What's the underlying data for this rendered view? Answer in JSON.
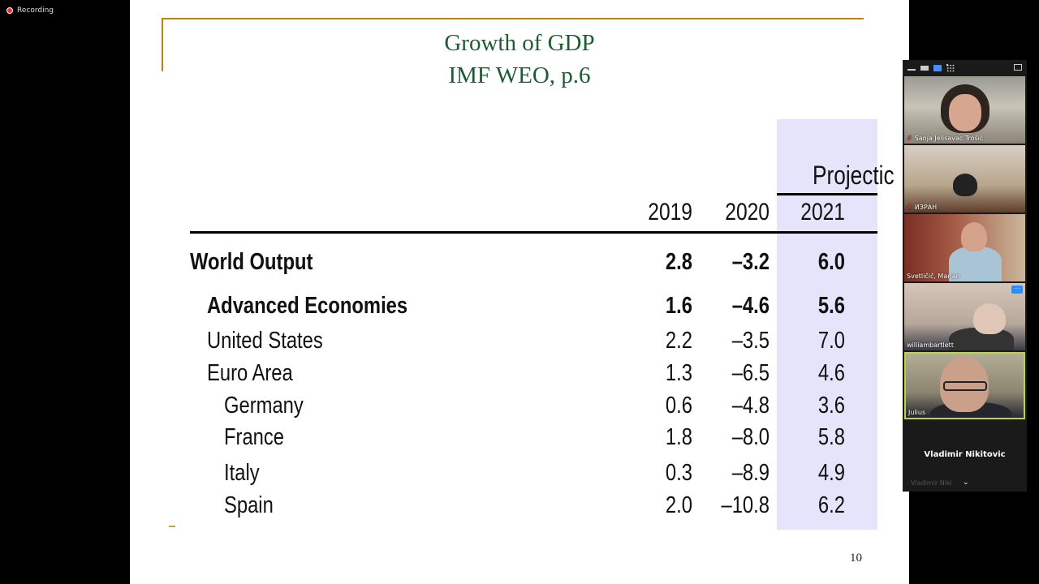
{
  "recording": {
    "label": "Recording"
  },
  "slide": {
    "title_line1": "Growth of GDP",
    "title_line2": "IMF WEO, p.6",
    "page_number": "10",
    "table": {
      "projections_label": "Projectic",
      "years": [
        "2019",
        "2020",
        "2021"
      ],
      "rows": [
        {
          "label": "World Output",
          "bold": true,
          "indent": 0,
          "values": [
            "2.8",
            "–3.2",
            "6.0"
          ]
        },
        {
          "label": "Advanced Economies",
          "bold": true,
          "indent": 1,
          "values": [
            "1.6",
            "–4.6",
            "5.6"
          ]
        },
        {
          "label": "United States",
          "bold": false,
          "indent": 1,
          "values": [
            "2.2",
            "–3.5",
            "7.0"
          ]
        },
        {
          "label": "Euro Area",
          "bold": false,
          "indent": 1,
          "values": [
            "1.3",
            "–6.5",
            "4.6"
          ]
        },
        {
          "label": "Germany",
          "bold": false,
          "indent": 2,
          "values": [
            "0.6",
            "–4.8",
            "3.6"
          ]
        },
        {
          "label": "France",
          "bold": false,
          "indent": 2,
          "values": [
            "1.8",
            "–8.0",
            "5.8"
          ]
        },
        {
          "label": "Italy",
          "bold": false,
          "indent": 2,
          "values": [
            "0.3",
            "–8.9",
            "4.9"
          ]
        },
        {
          "label": "Spain",
          "bold": false,
          "indent": 2,
          "values": [
            "2.0",
            "–10.8",
            "6.2"
          ]
        }
      ]
    }
  },
  "participants": {
    "tiles": [
      {
        "name": "Sanja Jelisavac Trošić",
        "muted": true
      },
      {
        "name": "ИЗРАН",
        "muted": true
      },
      {
        "name": "Svetličič, Marjan",
        "muted": false
      },
      {
        "name": "williambartlett",
        "muted": false
      },
      {
        "name": "Julius",
        "muted": false
      }
    ],
    "more_label": "···",
    "active_speaker": "Vladimir Nikitovic",
    "active_speaker_small": "Vladimir Niki"
  },
  "colors": {
    "title_green": "#1d5c32",
    "frame_gold": "#b8860b",
    "projection_band": "#e6e4fb",
    "active_border": "#b9d34a"
  }
}
